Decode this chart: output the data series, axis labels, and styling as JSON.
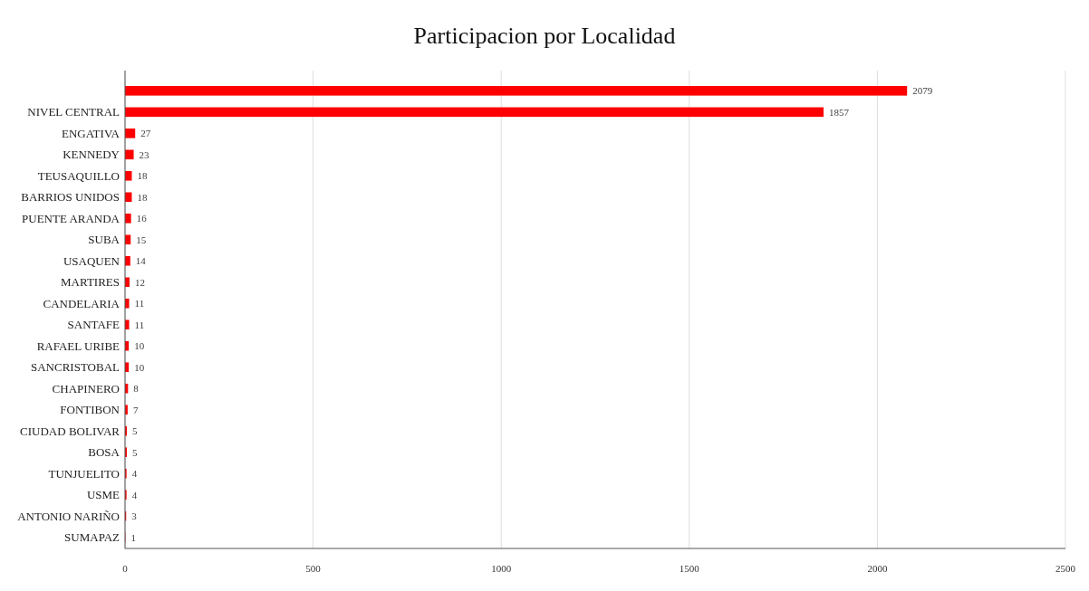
{
  "chart_data": {
    "type": "bar",
    "orientation": "horizontal",
    "title": "Participacion por Localidad",
    "categories": [
      null,
      "NIVEL CENTRAL",
      "ENGATIVA",
      "KENNEDY",
      "TEUSAQUILLO",
      "BARRIOS UNIDOS",
      "PUENTE ARANDA",
      "SUBA",
      "USAQUEN",
      "MARTIRES",
      "CANDELARIA",
      "SANTAFE",
      "RAFAEL URIBE",
      "SANCRISTOBAL",
      "CHAPINERO",
      "FONTIBON",
      "CIUDAD BOLIVAR",
      "BOSA",
      "TUNJUELITO",
      "USME",
      "ANTONIO NARIÑO",
      "SUMAPAZ"
    ],
    "values": [
      2079,
      1857,
      27,
      23,
      18,
      18,
      16,
      15,
      14,
      12,
      11,
      11,
      10,
      10,
      8,
      7,
      5,
      5,
      4,
      4,
      3,
      1
    ],
    "color": "#ff0000",
    "xlim": [
      0,
      2500
    ],
    "xticks": [
      0,
      500,
      1000,
      1500,
      2000,
      2500
    ],
    "grid": "x",
    "data_labels": true
  }
}
